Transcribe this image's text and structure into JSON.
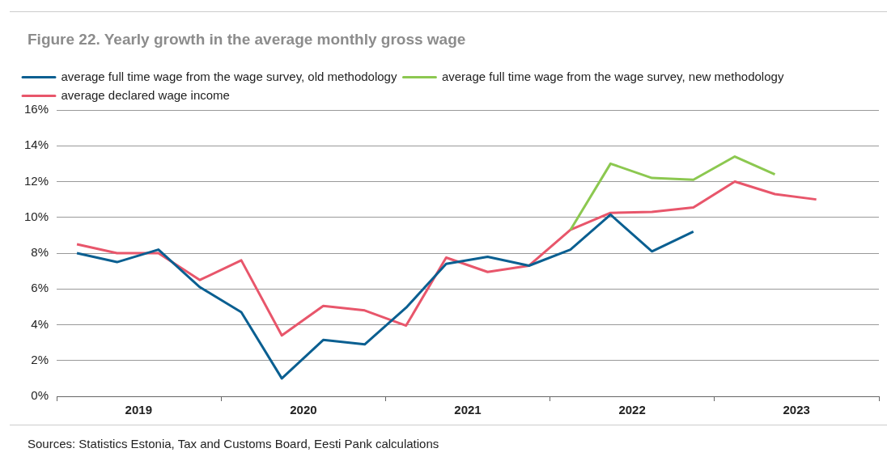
{
  "chart_data": {
    "type": "line",
    "title": "Figure 22. Yearly growth in the average monthly gross wage",
    "x": [
      "2019-02-15",
      "2019-05-15",
      "2019-08-15",
      "2019-11-15",
      "2020-02-15",
      "2020-05-15",
      "2020-08-15",
      "2020-11-15",
      "2021-02-15",
      "2021-05-15",
      "2021-08-15",
      "2021-11-15",
      "2022-02-15",
      "2022-05-15",
      "2022-08-15",
      "2022-11-15",
      "2023-02-15",
      "2023-05-15",
      "2023-08-15"
    ],
    "xlim": [
      "2019-01-01",
      "2024-01-01"
    ],
    "xticks": [
      {
        "value": "2019-01-01",
        "label": null
      },
      {
        "value": "2019-07-02",
        "label": "2019"
      },
      {
        "value": "2020-01-01",
        "label": null
      },
      {
        "value": "2020-07-02",
        "label": "2020"
      },
      {
        "value": "2021-01-01",
        "label": null
      },
      {
        "value": "2021-07-02",
        "label": "2021"
      },
      {
        "value": "2022-01-01",
        "label": null
      },
      {
        "value": "2022-07-02",
        "label": "2022"
      },
      {
        "value": "2023-01-01",
        "label": null
      },
      {
        "value": "2023-07-02",
        "label": "2023"
      },
      {
        "value": "2024-01-01",
        "label": null
      }
    ],
    "series": [
      {
        "name": "average full time wage from the wage survey, old methodology",
        "color": "#0a5f91",
        "values": [
          8.0,
          7.5,
          8.2,
          6.1,
          4.7,
          1.0,
          3.15,
          2.9,
          4.95,
          7.4,
          7.8,
          7.3,
          8.2,
          10.15,
          8.1,
          9.2,
          null,
          null,
          null
        ]
      },
      {
        "name": "average full time wage from the wage survey, new methodology",
        "color": "#8cc850",
        "values": [
          null,
          null,
          null,
          null,
          null,
          null,
          null,
          null,
          null,
          null,
          null,
          null,
          9.3,
          13.0,
          12.2,
          12.1,
          13.4,
          12.4,
          null
        ]
      },
      {
        "name": "average declared wage income",
        "color": "#e8566b",
        "values": [
          8.5,
          8.0,
          8.0,
          6.5,
          7.6,
          3.4,
          5.05,
          4.8,
          3.95,
          7.75,
          6.95,
          7.3,
          9.3,
          10.25,
          10.3,
          10.55,
          12.0,
          11.3,
          11.0
        ]
      }
    ],
    "ylim": [
      0,
      16
    ],
    "yticks": [
      {
        "value": 0,
        "label": "0%"
      },
      {
        "value": 2,
        "label": "2%"
      },
      {
        "value": 4,
        "label": "4%"
      },
      {
        "value": 6,
        "label": "6%"
      },
      {
        "value": 8,
        "label": "8%"
      },
      {
        "value": 10,
        "label": "10%"
      },
      {
        "value": 12,
        "label": "12%"
      },
      {
        "value": 14,
        "label": "14%"
      },
      {
        "value": 16,
        "label": "16%"
      }
    ],
    "grid": "y",
    "legend": "top left",
    "marker": "none",
    "line_style": "solid",
    "annotations": [
      "Sources: Statistics Estonia, Tax and Customs Board, Eesti Pank calculations"
    ]
  }
}
